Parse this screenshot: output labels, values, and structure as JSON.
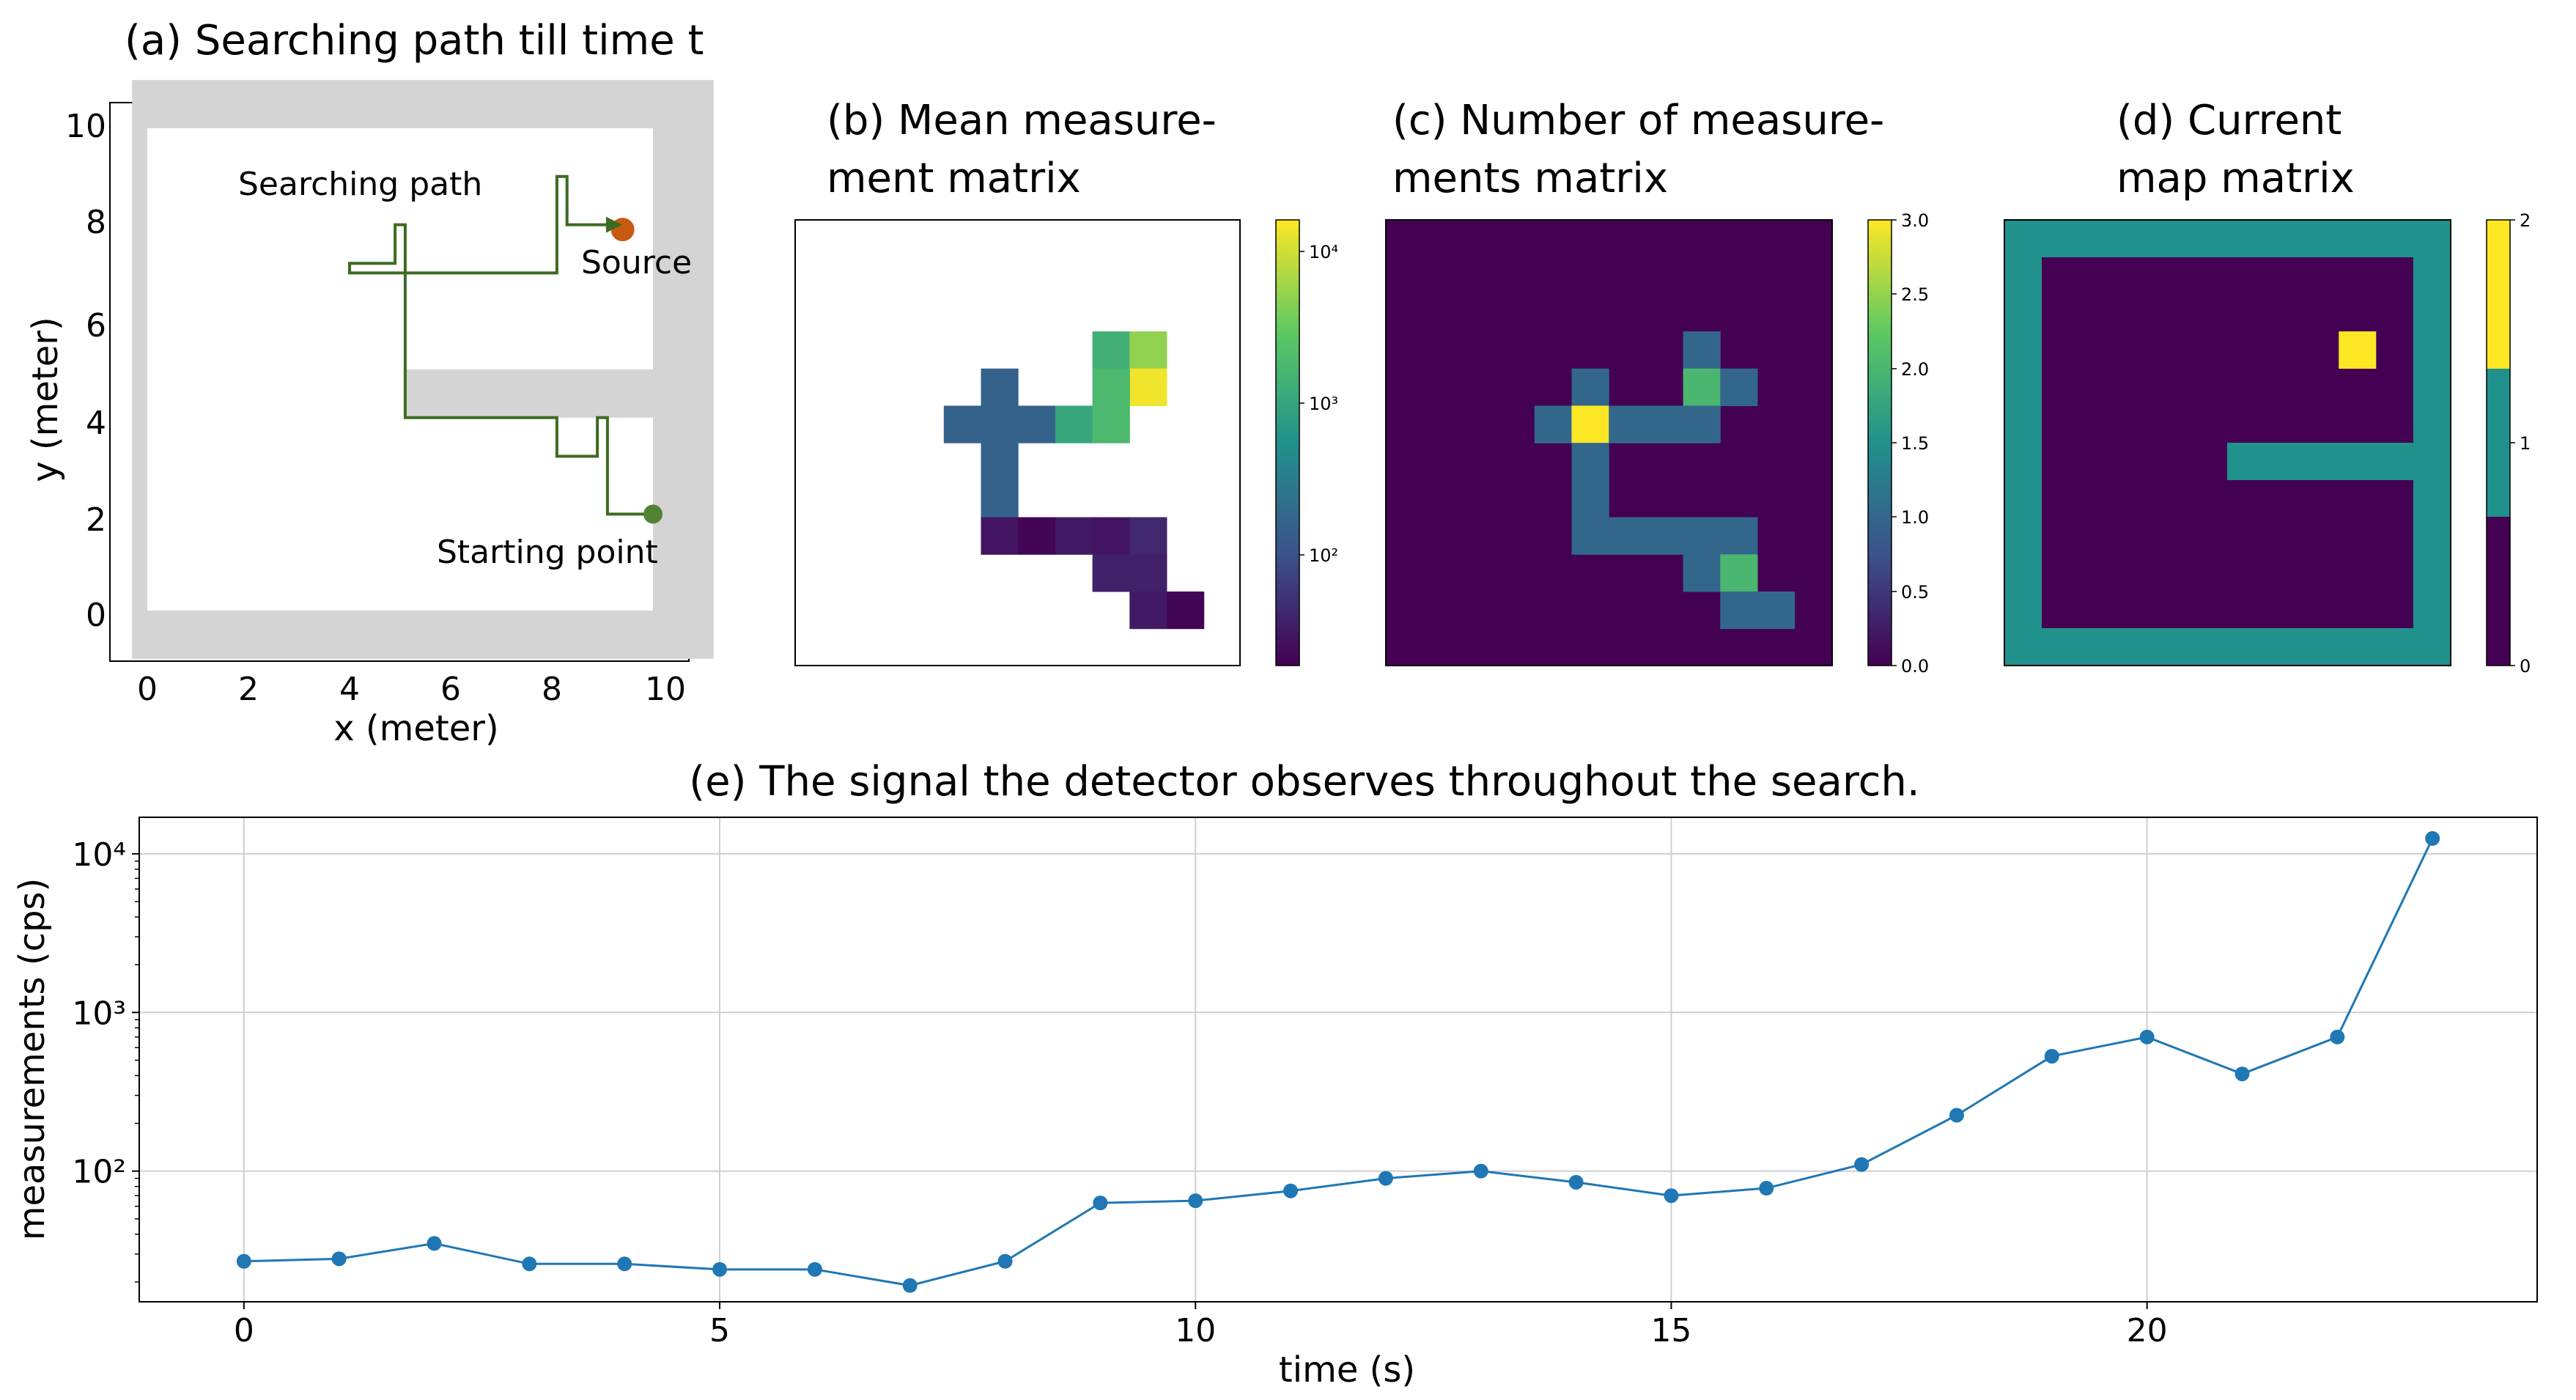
{
  "panels": {
    "a": {
      "title": "(a) Searching path till time t",
      "xlabel": "x (meter)",
      "ylabel": "y (meter)",
      "xticks": [
        "0",
        "2",
        "4",
        "6",
        "8",
        "10"
      ],
      "yticks": [
        "0",
        "2",
        "4",
        "6",
        "8",
        "10"
      ],
      "labels": {
        "path": "Searching path",
        "source": "Source",
        "start": "Starting point"
      },
      "colors": {
        "path": "#3d6b22",
        "source": "#c65a11",
        "start": "#548235",
        "wall": "#d4d4d4"
      },
      "path": [
        [
          10,
          2
        ],
        [
          9.1,
          2
        ],
        [
          9.1,
          4
        ],
        [
          8.9,
          4
        ],
        [
          8.9,
          3.2
        ],
        [
          8.1,
          3.2
        ],
        [
          8.1,
          4
        ],
        [
          5.1,
          4
        ],
        [
          5.1,
          7
        ],
        [
          4,
          7
        ],
        [
          4,
          7.2
        ],
        [
          4.9,
          7.2
        ],
        [
          4.9,
          8
        ],
        [
          5.1,
          8
        ],
        [
          5.1,
          7
        ],
        [
          8.1,
          7
        ],
        [
          8.1,
          9
        ],
        [
          8.3,
          9
        ],
        [
          8.3,
          8
        ],
        [
          9.1,
          8
        ]
      ],
      "source": [
        9.4,
        7.9
      ],
      "start": [
        10,
        2
      ]
    },
    "b": {
      "title_line1": "(b) Mean measure-",
      "title_line2": "ment matrix",
      "colorbar_ticks": [
        "10⁴",
        "10³",
        "10²"
      ],
      "cells": [
        [
          8,
          3,
          1300
        ],
        [
          9,
          3,
          5000
        ],
        [
          9,
          4,
          14000
        ],
        [
          5,
          4,
          150
        ],
        [
          8,
          4,
          1800
        ],
        [
          4,
          5,
          150
        ],
        [
          5,
          5,
          150
        ],
        [
          6,
          5,
          150
        ],
        [
          7,
          5,
          1000
        ],
        [
          8,
          5,
          1800
        ],
        [
          5,
          6,
          150
        ],
        [
          5,
          7,
          150
        ],
        [
          5,
          8,
          27
        ],
        [
          6,
          8,
          20
        ],
        [
          7,
          8,
          30
        ],
        [
          8,
          8,
          27
        ],
        [
          9,
          8,
          40
        ],
        [
          8,
          9,
          35
        ],
        [
          9,
          9,
          35
        ],
        [
          9,
          10,
          30
        ],
        [
          10,
          10,
          20
        ]
      ]
    },
    "c": {
      "title_line1": "(c) Number of measure-",
      "title_line2": "ments matrix",
      "colorbar_ticks": [
        "3.0",
        "2.5",
        "2.0",
        "1.5",
        "1.0",
        "0.5",
        "0.0"
      ],
      "cells": [
        [
          8,
          3,
          1
        ],
        [
          5,
          4,
          1
        ],
        [
          8,
          4,
          2
        ],
        [
          9,
          4,
          1
        ],
        [
          4,
          5,
          1
        ],
        [
          5,
          5,
          3
        ],
        [
          6,
          5,
          1
        ],
        [
          7,
          5,
          1
        ],
        [
          8,
          5,
          1
        ],
        [
          5,
          6,
          1
        ],
        [
          5,
          7,
          1
        ],
        [
          5,
          8,
          1
        ],
        [
          6,
          8,
          1
        ],
        [
          7,
          8,
          1
        ],
        [
          8,
          8,
          1
        ],
        [
          9,
          8,
          1
        ],
        [
          8,
          9,
          1
        ],
        [
          9,
          9,
          2
        ],
        [
          9,
          10,
          1
        ],
        [
          10,
          10,
          1
        ]
      ]
    },
    "d": {
      "title_line1": "(d) Current",
      "title_line2": "map matrix",
      "colorbar_ticks": [
        "2",
        "1",
        "0"
      ],
      "source_cell": [
        9,
        3
      ]
    },
    "e": {
      "title": "(e) The signal the detector observes throughout the search.",
      "xlabel": "time (s)",
      "ylabel": "measurements (cps)"
    }
  },
  "chart_data": {
    "type": "line",
    "title": "(e) The signal the detector observes throughout the search.",
    "xlabel": "time (s)",
    "ylabel": "measurements (cps)",
    "yscale": "log",
    "xlim": [
      -1.1,
      24.1
    ],
    "ylim": [
      15,
      17000
    ],
    "x_ticks": [
      0,
      5,
      10,
      15,
      20
    ],
    "y_ticks": [
      {
        "value": 100,
        "label": "10²"
      },
      {
        "value": 1000,
        "label": "10³"
      },
      {
        "value": 10000,
        "label": "10⁴"
      }
    ],
    "grid": true,
    "color": "#1f77b4",
    "x": [
      0,
      1,
      2,
      3,
      4,
      5,
      6,
      7,
      8,
      9,
      10,
      11,
      12,
      13,
      14,
      15,
      16,
      17,
      18,
      19,
      20,
      21,
      22,
      23
    ],
    "values": [
      27,
      28,
      35,
      26,
      26,
      24,
      24,
      19,
      27,
      63,
      65,
      75,
      90,
      100,
      85,
      70,
      78,
      110,
      225,
      530,
      700,
      410,
      700,
      12500
    ]
  }
}
